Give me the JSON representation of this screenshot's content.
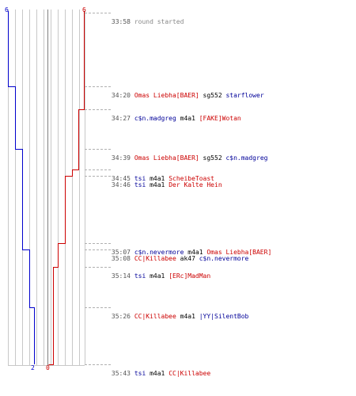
{
  "scores": {
    "blue_start": "6",
    "red_start": "6",
    "blue_end": "2",
    "red_end": "0"
  },
  "colors": {
    "red": "#cc0000",
    "blue": "#0000cc",
    "grid": "#c8c8c8",
    "center": "#808080"
  },
  "events": [
    {
      "time": "33:58",
      "note": "round started"
    },
    {
      "time": "34:20",
      "killer": "Omas Liebha[BAER]",
      "killer_team": "red",
      "weapon": "sg552",
      "victim": "starflower",
      "victim_team": "blue"
    },
    {
      "time": "34:27",
      "killer": "c$n.madgreg",
      "killer_team": "blue",
      "weapon": "m4a1",
      "victim": "[FAKE]Wotan",
      "victim_team": "red"
    },
    {
      "time": "34:39",
      "killer": "Omas Liebha[BAER]",
      "killer_team": "red",
      "weapon": "sg552",
      "victim": "c$n.madgreg",
      "victim_team": "blue"
    },
    {
      "time": "34:45",
      "killer": "tsi",
      "killer_team": "blue",
      "weapon": "m4a1",
      "victim": "ScheibeToast",
      "victim_team": "red"
    },
    {
      "time": "34:46",
      "killer": "tsi",
      "killer_team": "blue",
      "weapon": "m4a1",
      "victim": "Der Kalte Hein",
      "victim_team": "red"
    },
    {
      "time": "35:07",
      "killer": "c$n.nevermore",
      "killer_team": "blue",
      "weapon": "m4a1",
      "victim": "Omas Liebha[BAER]",
      "victim_team": "red"
    },
    {
      "time": "35:08",
      "killer": "CC|Killabee",
      "killer_team": "red",
      "weapon": "ak47",
      "victim": "c$n.nevermore",
      "victim_team": "blue"
    },
    {
      "time": "35:14",
      "killer": "tsi",
      "killer_team": "blue",
      "weapon": "m4a1",
      "victim": "[ERc]MadMan",
      "victim_team": "red"
    },
    {
      "time": "35:26",
      "killer": "CC|Killabee",
      "killer_team": "red",
      "weapon": "m4a1",
      "victim": "|YY|SilentBob",
      "victim_team": "blue"
    },
    {
      "time": "35:43",
      "killer": "tsi",
      "killer_team": "blue",
      "weapon": "m4a1",
      "victim": "CC|Killabee",
      "victim_team": "red"
    }
  ]
}
